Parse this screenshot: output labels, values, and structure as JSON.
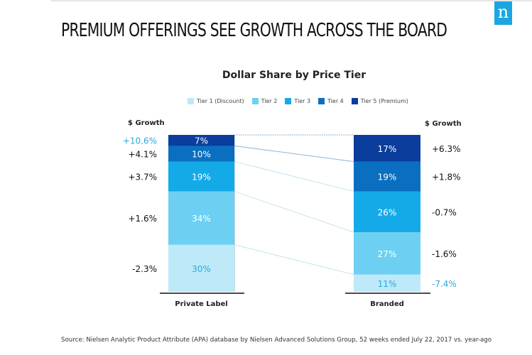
{
  "header": {
    "title": "PREMIUM OFFERINGS SEE GROWTH ACROSS THE BOARD",
    "logo_text": "n",
    "logo_color": "#1ba6e3"
  },
  "footer": {
    "source": "Source: Nielsen Analytic Product Attribute (APA) database by Nielsen Advanced Solutions Group, 52 weeks ended July 22, 2017 vs. year-ago"
  },
  "chart_data": {
    "type": "bar",
    "subtype": "100% stacked",
    "title": "Dollar Share by Price Tier",
    "growth_header": "$ Growth",
    "categories": [
      "Private Label",
      "Branded"
    ],
    "legend_position": "top",
    "ylim": [
      0,
      100
    ],
    "series": [
      {
        "name": "Tier 1 (Discount)",
        "color": "#bde9f8",
        "label_color": "#29a9df",
        "values": [
          30,
          11
        ],
        "growth": [
          "-2.3%",
          "-7.4%"
        ],
        "growth_highlight": [
          false,
          true
        ]
      },
      {
        "name": "Tier 2",
        "color": "#6dd0f3",
        "label_color": "#ffffff",
        "values": [
          34,
          27
        ],
        "growth": [
          "+1.6%",
          "-1.6%"
        ],
        "growth_highlight": [
          false,
          false
        ]
      },
      {
        "name": "Tier 3",
        "color": "#14aae8",
        "label_color": "#ffffff",
        "values": [
          19,
          26
        ],
        "growth": [
          "+3.7%",
          "-0.7%"
        ],
        "growth_highlight": [
          false,
          false
        ]
      },
      {
        "name": "Tier 4",
        "color": "#0a6fc0",
        "label_color": "#ffffff",
        "values": [
          10,
          19
        ],
        "growth": [
          "+4.1%",
          "+1.8%"
        ],
        "growth_highlight": [
          false,
          false
        ]
      },
      {
        "name": "Tier 5 (Premium)",
        "color": "#0a3d9c",
        "label_color": "#ffffff",
        "values": [
          7,
          17
        ],
        "growth": [
          "+10.6%",
          "+6.3%"
        ],
        "growth_highlight": [
          true,
          false
        ]
      }
    ],
    "highlight_color": "#29a9df"
  }
}
